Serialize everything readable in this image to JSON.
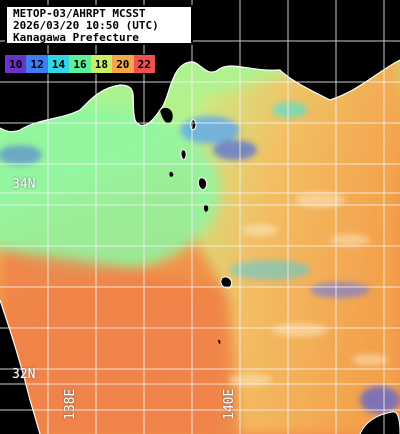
{
  "header": {
    "line1": "METOP-03/AHRPT MCSST",
    "line2": "2026/03/20 10:50 (UTC)",
    "line3": "Kanagawa Prefecture"
  },
  "legend": {
    "values": [
      "10",
      "12",
      "14",
      "16",
      "18",
      "20",
      "22"
    ],
    "colors": [
      "#6a32c8",
      "#3e7df0",
      "#33d6e6",
      "#5ef09a",
      "#c8f064",
      "#f4a84a",
      "#f0504e"
    ]
  },
  "grid": {
    "latitudes": [
      "34N",
      "32N"
    ],
    "longitudes": [
      "138E",
      "140E"
    ]
  },
  "colors": {
    "land": "#000000",
    "coast": "#ffffff",
    "gridline": "#f3f3f3",
    "cold_water": "#8ef59c",
    "warm_water": "#f5a24c",
    "hot_water": "#ef7a4a"
  }
}
